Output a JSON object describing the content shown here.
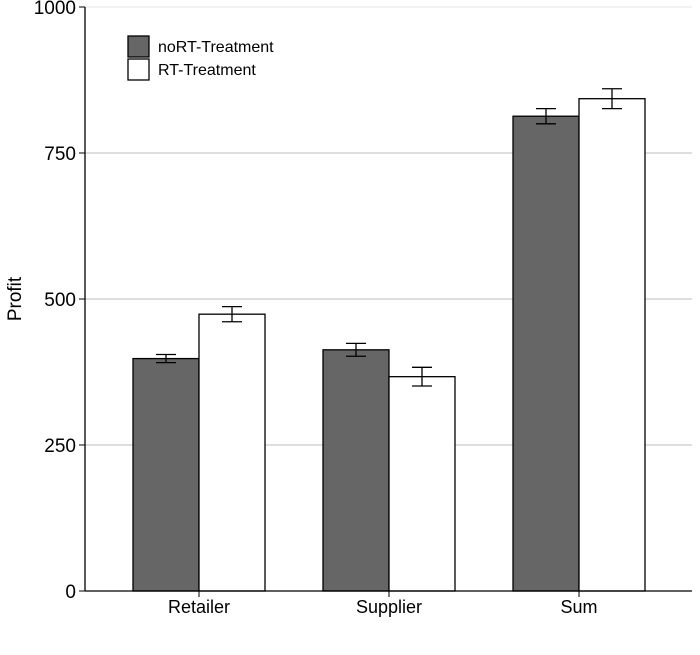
{
  "chart_data": {
    "type": "bar",
    "title": "",
    "xlabel": "",
    "ylabel": "Profit",
    "ylim": [
      0,
      1000
    ],
    "yticks": [
      0,
      250,
      500,
      750,
      1000
    ],
    "grid": "horizontal",
    "legend_position": "top-left",
    "categories": [
      "Retailer",
      "Supplier",
      "Sum"
    ],
    "series": [
      {
        "name": "noRT-Treatment",
        "color": "#666666",
        "values": [
          398,
          413,
          813
        ],
        "error": [
          7,
          11,
          13
        ]
      },
      {
        "name": "RT-Treatment",
        "color": "#ffffff",
        "values": [
          474,
          367,
          843
        ],
        "error": [
          13,
          16,
          17
        ]
      }
    ]
  }
}
